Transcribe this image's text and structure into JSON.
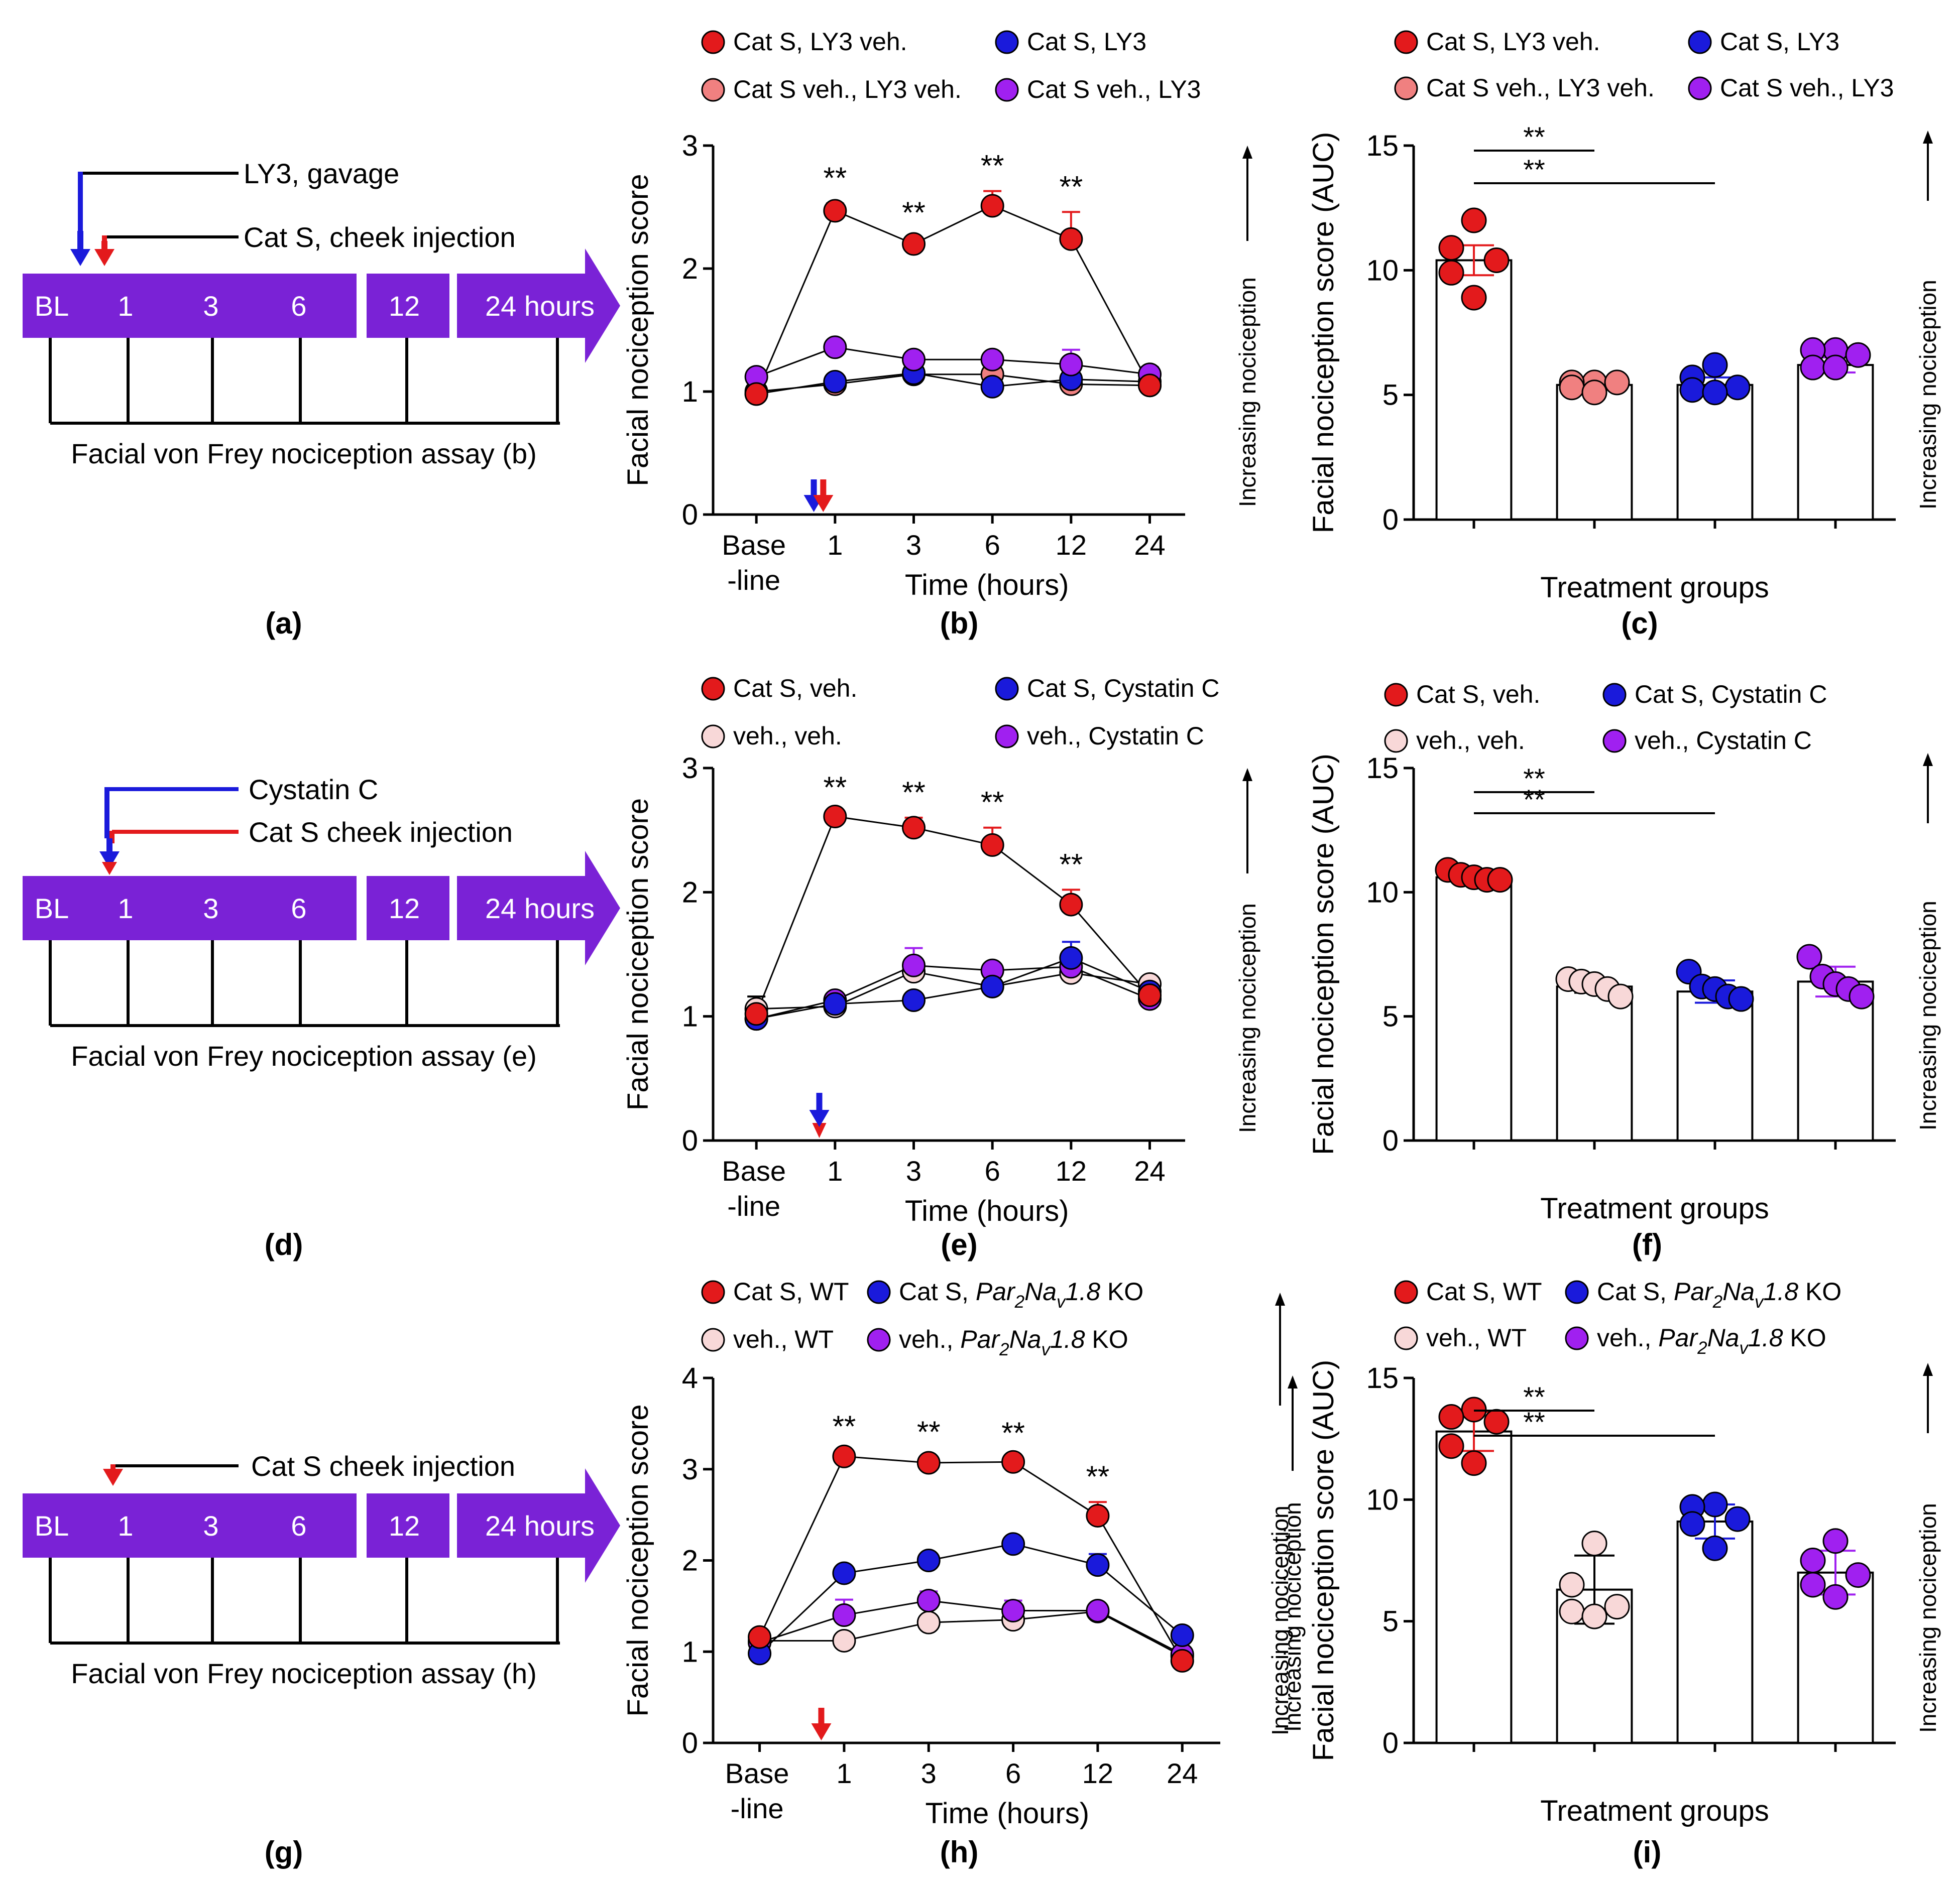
{
  "colors": {
    "red": "#e31a1c",
    "salmon": "#f08080",
    "blue": "#1a1adb",
    "purple": "#a020f0",
    "pink": "#f8d8d8",
    "timeline": "#7a22d6",
    "black": "#000000"
  },
  "panel_labels": [
    "(a)",
    "(b)",
    "(c)",
    "(d)",
    "(e)",
    "(f)",
    "(g)",
    "(h)",
    "(i)"
  ],
  "timelines": [
    {
      "id": "a",
      "labels": [
        "BL",
        "1",
        "3",
        "6",
        "12",
        "24 hours"
      ],
      "annotations": [
        {
          "text": "LY3, gavage",
          "color": "#1a1adb",
          "line": "#000000"
        },
        {
          "text": "Cat S, cheek injection",
          "color": "#e31a1c",
          "line": "#000000"
        }
      ],
      "caption": "Facial von Frey nociception assay (b)"
    },
    {
      "id": "d",
      "labels": [
        "BL",
        "1",
        "3",
        "6",
        "12",
        "24 hours"
      ],
      "annotations": [
        {
          "text": "Cystatin C",
          "color": "#1a1adb",
          "line": "#1a1adb"
        },
        {
          "text": "Cat S cheek injection",
          "color": "#e31a1c",
          "line": "#e31a1c"
        }
      ],
      "caption": "Facial von Frey nociception assay (e)"
    },
    {
      "id": "g",
      "labels": [
        "BL",
        "1",
        "3",
        "6",
        "12",
        "24 hours"
      ],
      "annotations": [
        {
          "text": "Cat S cheek injection",
          "color": "#e31a1c",
          "line": "#000000"
        }
      ],
      "caption": "Facial von Frey nociception assay (h)"
    }
  ],
  "chart_data": [
    {
      "id": "b",
      "type": "line",
      "ylabel": "Facial nociception score",
      "xlabel": "Time (hours)",
      "categories": [
        "Base -line",
        "1",
        "3",
        "6",
        "12",
        "24"
      ],
      "ylim": [
        0,
        3
      ],
      "yticks": [
        0,
        1,
        2,
        3
      ],
      "side_label": "Increasing nociception",
      "legend": [
        {
          "name": "Cat S, LY3 veh.",
          "color": "#e31a1c"
        },
        {
          "name": "Cat S, LY3",
          "color": "#1a1adb"
        },
        {
          "name": "Cat S veh., LY3 veh.",
          "color": "#f08080"
        },
        {
          "name": "Cat S veh., LY3",
          "color": "#a020f0"
        }
      ],
      "series": [
        {
          "name": "Cat S, LY3 veh.",
          "color": "#e31a1c",
          "values": [
            0.98,
            2.47,
            2.2,
            2.51,
            2.24,
            1.05
          ],
          "errors": [
            0.03,
            0.06,
            0.05,
            0.12,
            0.22,
            0.03
          ]
        },
        {
          "name": "Cat S veh., LY3",
          "color": "#a020f0",
          "values": [
            1.12,
            1.36,
            1.26,
            1.26,
            1.22,
            1.14
          ],
          "errors": [
            0.05,
            0.03,
            0.03,
            0.05,
            0.12,
            0.06
          ]
        },
        {
          "name": "Cat S, LY3",
          "color": "#1a1adb",
          "values": [
            0.98,
            1.08,
            1.15,
            1.04,
            1.1,
            1.08
          ],
          "errors": [
            0.02,
            0.02,
            0.02,
            0.02,
            0.02,
            0.02
          ]
        },
        {
          "name": "Cat S veh., LY3 veh.",
          "color": "#f08080",
          "values": [
            1.0,
            1.06,
            1.14,
            1.14,
            1.06,
            1.05
          ],
          "errors": [
            0.02,
            0.02,
            0.02,
            0.02,
            0.02,
            0.02
          ]
        }
      ],
      "stars": [
        {
          "index": 1,
          "text": "**"
        },
        {
          "index": 2,
          "text": "**"
        },
        {
          "index": 3,
          "text": "**"
        },
        {
          "index": 4,
          "text": "**"
        }
      ],
      "arrows": [
        {
          "color": "#1a1adb",
          "offset": -0.27
        },
        {
          "color": "#e31a1c",
          "offset": -0.15
        }
      ]
    },
    {
      "id": "c",
      "type": "bar",
      "ylabel": "Facial nociception score (AUC)",
      "xlabel": "Treatment groups",
      "ylim": [
        0,
        15
      ],
      "yticks": [
        0,
        5,
        10,
        15
      ],
      "side_label": "Increasing nociception",
      "legend": [
        {
          "name": "Cat S, LY3 veh.",
          "color": "#e31a1c"
        },
        {
          "name": "Cat S, LY3",
          "color": "#1a1adb"
        },
        {
          "name": "Cat S veh., LY3 veh.",
          "color": "#f08080"
        },
        {
          "name": "Cat S veh., LY3",
          "color": "#a020f0"
        }
      ],
      "bars": [
        {
          "name": "Cat S, LY3 veh.",
          "color": "#e31a1c",
          "mean": 10.4,
          "error": 0.6,
          "points": [
            12.0,
            10.9,
            10.4,
            9.9,
            8.9
          ]
        },
        {
          "name": "Cat S veh., LY3 veh.",
          "color": "#f08080",
          "mean": 5.4,
          "error": 0.15,
          "points": [
            5.5,
            5.5,
            5.5,
            5.3,
            5.1
          ]
        },
        {
          "name": "Cat S, LY3",
          "color": "#1a1adb",
          "mean": 5.4,
          "error": 0.3,
          "points": [
            6.2,
            5.7,
            5.3,
            5.2,
            5.1
          ]
        },
        {
          "name": "Cat S veh., LY3",
          "color": "#a020f0",
          "mean": 6.2,
          "error": 0.3,
          "points": [
            6.8,
            6.8,
            6.6,
            6.1,
            6.1
          ]
        }
      ],
      "significance": [
        {
          "from": 0,
          "to": 1,
          "text": "**"
        },
        {
          "from": 0,
          "to": 2,
          "text": "**"
        }
      ]
    },
    {
      "id": "e",
      "type": "line",
      "ylabel": "Facial nociception score",
      "xlabel": "Time (hours)",
      "categories": [
        "Base -line",
        "1",
        "3",
        "6",
        "12",
        "24"
      ],
      "ylim": [
        0,
        3
      ],
      "yticks": [
        0,
        1,
        2,
        3
      ],
      "side_label": "Increasing nociception",
      "legend": [
        {
          "name": "Cat S, veh.",
          "color": "#e31a1c"
        },
        {
          "name": "Cat S, Cystatin C",
          "color": "#1a1adb"
        },
        {
          "name": "veh., veh.",
          "color": "#f8d8d8"
        },
        {
          "name": "veh., Cystatin C",
          "color": "#a020f0"
        }
      ],
      "series": [
        {
          "name": "Cat S, veh.",
          "color": "#e31a1c",
          "values": [
            1.02,
            2.61,
            2.52,
            2.38,
            1.9,
            1.17
          ],
          "errors": [
            0.03,
            0.03,
            0.08,
            0.14,
            0.12,
            0.03
          ]
        },
        {
          "name": "Cat S, Cystatin C",
          "color": "#1a1adb",
          "values": [
            0.98,
            1.1,
            1.13,
            1.24,
            1.47,
            1.2
          ],
          "errors": [
            0.02,
            0.02,
            0.02,
            0.03,
            0.13,
            0.03
          ]
        },
        {
          "name": "veh., Cystatin C",
          "color": "#a020f0",
          "values": [
            0.98,
            1.13,
            1.41,
            1.37,
            1.4,
            1.14
          ],
          "errors": [
            0.03,
            0.03,
            0.14,
            0.04,
            0.05,
            0.03
          ]
        },
        {
          "name": "veh., veh.",
          "color": "#f8d8d8",
          "values": [
            1.06,
            1.08,
            1.36,
            1.24,
            1.35,
            1.26
          ],
          "errors": [
            0.1,
            0.02,
            0.05,
            0.03,
            0.04,
            0.03
          ]
        }
      ],
      "stars": [
        {
          "index": 1,
          "text": "**"
        },
        {
          "index": 2,
          "text": "**"
        },
        {
          "index": 3,
          "text": "**"
        },
        {
          "index": 4,
          "text": "**"
        }
      ],
      "arrows": [
        {
          "color": "#e31a1c",
          "offset": -0.2
        },
        {
          "color": "#1a1adb",
          "offset": -0.2
        }
      ]
    },
    {
      "id": "f",
      "type": "bar",
      "ylabel": "Facial nociception score (AUC)",
      "xlabel": "Treatment groups",
      "ylim": [
        0,
        15
      ],
      "yticks": [
        0,
        5,
        10,
        15
      ],
      "side_label": "Increasing nociception",
      "legend": [
        {
          "name": "Cat S, veh.",
          "color": "#e31a1c"
        },
        {
          "name": "Cat S, Cystatin C",
          "color": "#1a1adb"
        },
        {
          "name": "veh., veh.",
          "color": "#f8d8d8"
        },
        {
          "name": "veh., Cystatin C",
          "color": "#a020f0"
        }
      ],
      "bars": [
        {
          "name": "Cat S, veh.",
          "color": "#e31a1c",
          "mean": 10.6,
          "error": 0.3,
          "points": [
            10.9,
            10.7,
            10.6,
            10.5,
            10.5
          ]
        },
        {
          "name": "veh., veh.",
          "color": "#f8d8d8",
          "mean": 6.2,
          "error": 0.25,
          "points": [
            6.5,
            6.4,
            6.3,
            6.1,
            5.8
          ]
        },
        {
          "name": "Cat S, Cystatin C",
          "color": "#1a1adb",
          "mean": 6.0,
          "error": 0.45,
          "points": [
            6.8,
            6.2,
            6.1,
            5.8,
            5.7
          ]
        },
        {
          "name": "veh., Cystatin C",
          "color": "#a020f0",
          "mean": 6.4,
          "error": 0.6,
          "points": [
            7.4,
            6.6,
            6.3,
            6.1,
            5.8
          ]
        }
      ],
      "significance": [
        {
          "from": 0,
          "to": 1,
          "text": "**"
        },
        {
          "from": 0,
          "to": 2,
          "text": "**"
        }
      ]
    },
    {
      "id": "h",
      "type": "line",
      "ylabel": "Facial nociception score",
      "xlabel": "Time (hours)",
      "categories": [
        "Base -line",
        "1",
        "3",
        "6",
        "12",
        "24"
      ],
      "ylim": [
        0,
        4
      ],
      "yticks": [
        0,
        1,
        2,
        3,
        4
      ],
      "side_label": "Increasing nociception",
      "legend": [
        {
          "name": "Cat S, WT",
          "color": "#e31a1c"
        },
        {
          "name": "Cat S, Par2Nav1.8 KO",
          "color": "#1a1adb",
          "prefix": "Cat S, ",
          "italic": "Par",
          "sub1": "2",
          "italic2": "Na",
          "sub2": "v",
          "italic3": "1.8",
          "suffix": " KO"
        },
        {
          "name": "veh., WT",
          "color": "#f8d8d8"
        },
        {
          "name": "veh., Par2Nav1.8 KO",
          "color": "#a020f0",
          "prefix": "veh., ",
          "italic": "Par",
          "sub1": "2",
          "italic2": "Na",
          "sub2": "v",
          "italic3": "1.8",
          "suffix": " KO"
        }
      ],
      "series": [
        {
          "name": "Cat S, WT",
          "color": "#e31a1c",
          "values": [
            1.16,
            3.14,
            3.07,
            3.08,
            2.49,
            0.9
          ],
          "errors": [
            0.05,
            0.05,
            0.06,
            0.04,
            0.15,
            0.04
          ]
        },
        {
          "name": "Cat S, Par2Nav1.8 KO",
          "color": "#1a1adb",
          "values": [
            0.98,
            1.86,
            2.0,
            2.18,
            1.95,
            1.18
          ],
          "errors": [
            0.03,
            0.03,
            0.06,
            0.04,
            0.12,
            0.03
          ]
        },
        {
          "name": "veh., Par2Nav1.8 KO",
          "color": "#a020f0",
          "values": [
            1.1,
            1.4,
            1.56,
            1.45,
            1.45,
            0.97
          ],
          "errors": [
            0.03,
            0.17,
            0.1,
            0.11,
            0.07,
            0.03
          ]
        },
        {
          "name": "veh., WT",
          "color": "#f8d8d8",
          "values": [
            1.12,
            1.12,
            1.32,
            1.35,
            1.44,
            0.95
          ],
          "errors": [
            0.02,
            0.02,
            0.03,
            0.04,
            0.04,
            0.03
          ]
        }
      ],
      "stars": [
        {
          "index": 1,
          "text": "**"
        },
        {
          "index": 2,
          "text": "**"
        },
        {
          "index": 3,
          "text": "**"
        },
        {
          "index": 4,
          "text": "**"
        }
      ],
      "arrows": [
        {
          "color": "#e31a1c",
          "offset": -0.27
        }
      ]
    },
    {
      "id": "i",
      "type": "bar",
      "ylabel": "Facial nociception score (AUC)",
      "xlabel": "Treatment groups",
      "ylim": [
        0,
        15
      ],
      "yticks": [
        0,
        5,
        10,
        15
      ],
      "side_label": "Increasing nociception",
      "legend": [
        {
          "name": "Cat S, WT",
          "color": "#e31a1c"
        },
        {
          "name": "Cat S, Par2Nav1.8 KO",
          "color": "#1a1adb",
          "prefix": "Cat S, ",
          "italic": "Par",
          "sub1": "2",
          "italic2": "Na",
          "sub2": "v",
          "italic3": "1.8",
          "suffix": " KO"
        },
        {
          "name": "veh., WT",
          "color": "#f8d8d8"
        },
        {
          "name": "veh., Par2Nav1.8 KO",
          "color": "#a020f0",
          "prefix": "veh., ",
          "italic": "Par",
          "sub1": "2",
          "italic2": "Na",
          "sub2": "v",
          "italic3": "1.8",
          "suffix": " KO"
        }
      ],
      "bars": [
        {
          "name": "Cat S, WT",
          "color": "#e31a1c",
          "mean": 12.8,
          "error": 0.8,
          "points": [
            13.7,
            13.4,
            13.2,
            12.2,
            11.5
          ]
        },
        {
          "name": "veh., WT",
          "color": "#f8d8d8",
          "mean": 6.3,
          "error": 1.4,
          "points": [
            8.2,
            6.5,
            5.6,
            5.4,
            5.2
          ]
        },
        {
          "name": "Cat S, Par2Nav1.8 KO",
          "color": "#1a1adb",
          "mean": 9.1,
          "error": 0.7,
          "points": [
            9.8,
            9.7,
            9.2,
            9.0,
            8.0
          ]
        },
        {
          "name": "veh., Par2Nav1.8 KO",
          "color": "#a020f0",
          "mean": 7.0,
          "error": 0.9,
          "points": [
            8.3,
            7.5,
            6.9,
            6.5,
            6.0
          ]
        }
      ],
      "significance": [
        {
          "from": 0,
          "to": 1,
          "text": "**"
        },
        {
          "from": 0,
          "to": 2,
          "text": "**"
        }
      ]
    }
  ]
}
